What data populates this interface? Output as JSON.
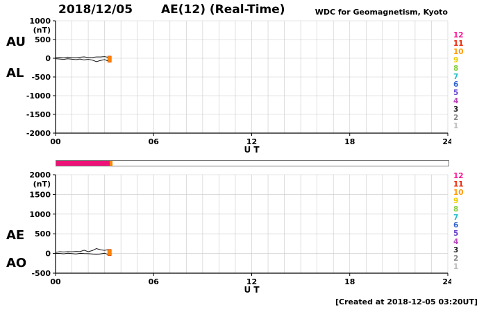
{
  "header": {
    "date": "2018/12/05",
    "title": "AE(12) (Real-Time)",
    "source": "WDC for Geomagnetism, Kyoto"
  },
  "footer": {
    "created_note": "[Created at 2018-12-05 03:20UT]"
  },
  "colors": {
    "grid": "#c9c9c9",
    "axis": "#000000",
    "trace": "#111111",
    "marker": "#ff8800",
    "marker_edge": "#cc3300",
    "progress_fill": "#ee1177",
    "progress_tip": "#ff8800"
  },
  "progress": {
    "total_hours": 24,
    "filled_hours": 3.25
  },
  "legend_numbers": [
    {
      "label": "12",
      "color": "#ff1493"
    },
    {
      "label": "11",
      "color": "#ee2200"
    },
    {
      "label": "10",
      "color": "#ff9900"
    },
    {
      "label": "9",
      "color": "#eecc00"
    },
    {
      "label": "8",
      "color": "#88cc44"
    },
    {
      "label": "7",
      "color": "#22bbcc"
    },
    {
      "label": "6",
      "color": "#3366cc"
    },
    {
      "label": "5",
      "color": "#6644cc"
    },
    {
      "label": "4",
      "color": "#bb44bb"
    },
    {
      "label": "3",
      "color": "#222222"
    },
    {
      "label": "2",
      "color": "#888888"
    },
    {
      "label": "1",
      "color": "#bbbbbb"
    }
  ],
  "chart_data": [
    {
      "type": "line",
      "panel": "AU/AL (Real-Time AE plot, upper panel)",
      "left_labels": [
        "AU",
        "AL"
      ],
      "unit_label": "(nT)",
      "xlabel": "U T",
      "ylim": [
        -2000,
        1000
      ],
      "yticks": [
        1000,
        500,
        0,
        -500,
        -1000,
        -1500,
        -2000
      ],
      "xlim": [
        0,
        24
      ],
      "xticks": [
        {
          "value": 0,
          "label": "00"
        },
        {
          "value": 6,
          "label": "06"
        },
        {
          "value": 12,
          "label": "12"
        },
        {
          "value": 18,
          "label": "18"
        },
        {
          "value": 24,
          "label": "24"
        }
      ],
      "x_hours": [
        0,
        0.25,
        0.5,
        0.75,
        1,
        1.25,
        1.5,
        1.75,
        2,
        2.25,
        2.5,
        2.75,
        3,
        3.25
      ],
      "series": [
        {
          "name": "AU",
          "color": "#111111",
          "values": [
            15,
            25,
            10,
            30,
            18,
            12,
            28,
            38,
            18,
            24,
            35,
            35,
            45,
            20
          ]
        },
        {
          "name": "AL",
          "color": "#111111",
          "values": [
            -12,
            -20,
            -30,
            -15,
            -25,
            -38,
            -20,
            -45,
            -28,
            -50,
            -90,
            -60,
            -35,
            -80
          ]
        }
      ],
      "end_marker": {
        "x": 3.3,
        "y": -25
      }
    },
    {
      "type": "line",
      "panel": "AE/AO (Real-Time AE plot, lower panel)",
      "left_labels": [
        "AE",
        "AO"
      ],
      "unit_label": "(nT)",
      "xlabel": "U T",
      "ylim": [
        -500,
        2000
      ],
      "yticks": [
        2000,
        1500,
        1000,
        500,
        0,
        -500
      ],
      "xlim": [
        0,
        24
      ],
      "xticks": [
        {
          "value": 0,
          "label": "00"
        },
        {
          "value": 6,
          "label": "06"
        },
        {
          "value": 12,
          "label": "12"
        },
        {
          "value": 18,
          "label": "18"
        },
        {
          "value": 24,
          "label": "24"
        }
      ],
      "x_hours": [
        0,
        0.25,
        0.5,
        0.75,
        1,
        1.25,
        1.5,
        1.75,
        2,
        2.25,
        2.5,
        2.75,
        3,
        3.25
      ],
      "series": [
        {
          "name": "AE",
          "color": "#111111",
          "values": [
            27,
            45,
            40,
            45,
            43,
            50,
            48,
            83,
            46,
            74,
            125,
            95,
            80,
            100
          ]
        },
        {
          "name": "AO",
          "color": "#111111",
          "values": [
            1,
            2,
            -10,
            7,
            -3,
            -13,
            4,
            -3,
            -5,
            -13,
            -27,
            -12,
            5,
            -30
          ]
        }
      ],
      "end_marker": {
        "x": 3.3,
        "y": 25
      }
    }
  ]
}
